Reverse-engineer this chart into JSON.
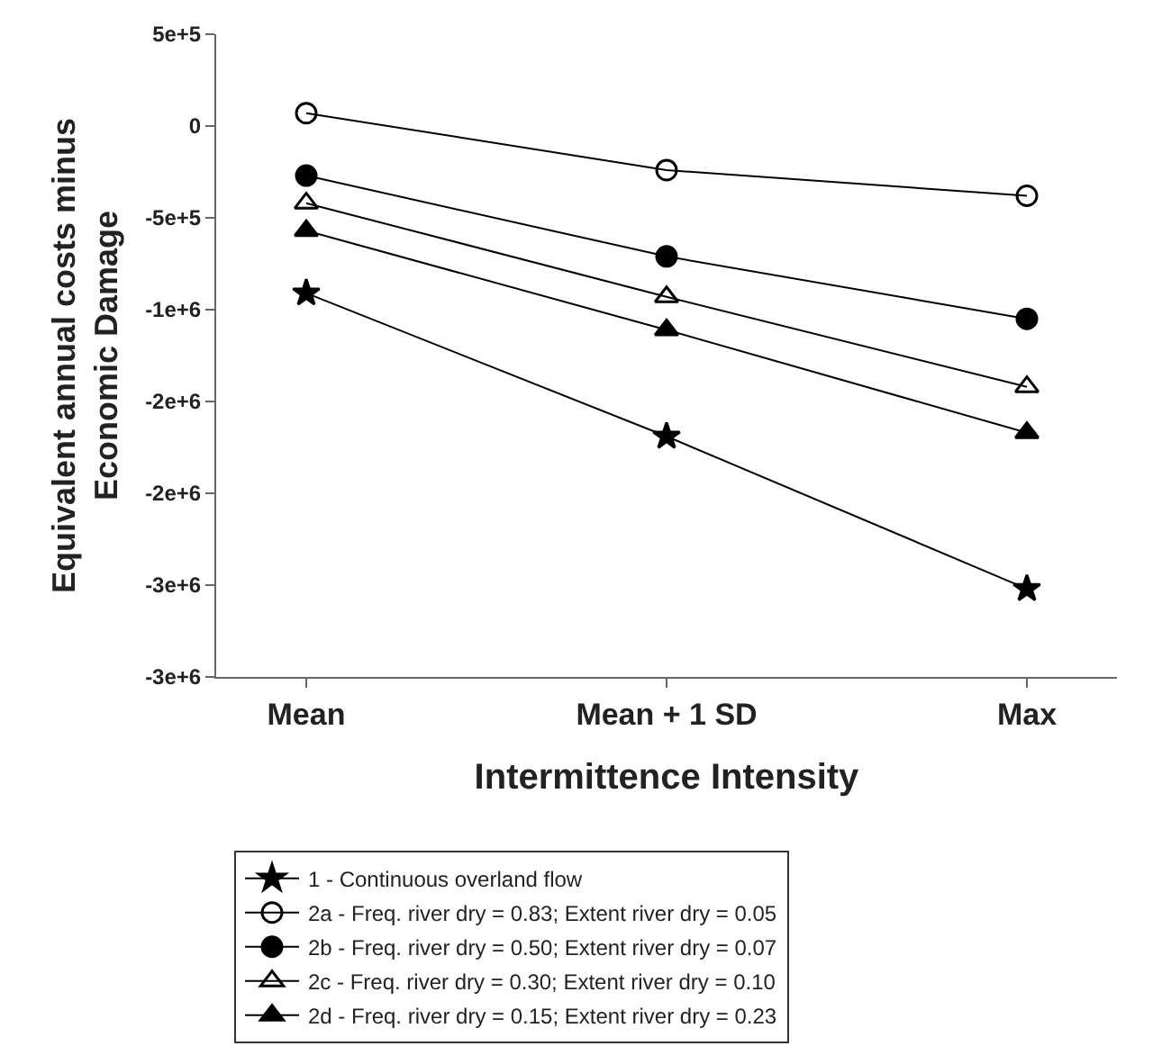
{
  "chart_data": {
    "type": "line",
    "xlabel": "Intermittence Intensity",
    "ylabel": "Equivalent annual costs minus\nEconomic Damage",
    "categories": [
      "Mean",
      "Mean + 1 SD",
      "Max"
    ],
    "ylim": [
      -3000000,
      500000
    ],
    "yticks": [
      {
        "value": 500000,
        "label": "5e+5"
      },
      {
        "value": 0,
        "label": "0"
      },
      {
        "value": -500000,
        "label": "-5e+5"
      },
      {
        "value": -1000000,
        "label": "-1e+6"
      },
      {
        "value": -1500000,
        "label": "-2e+6"
      },
      {
        "value": -2000000,
        "label": "-2e+6"
      },
      {
        "value": -2500000,
        "label": "-3e+6"
      },
      {
        "value": -3000000,
        "label": "-3e+6"
      }
    ],
    "legend": "bottom",
    "line_style": "solid",
    "series": [
      {
        "name": "1 - Continuous overland flow",
        "color": "#000000",
        "marker": "star",
        "values": [
          -910000,
          -1690000,
          -2520000
        ]
      },
      {
        "name": "2a - Freq. river dry = 0.83; Extent river dry = 0.05",
        "color": "#000000",
        "marker": "circle-open",
        "values": [
          70000,
          -240000,
          -380000
        ]
      },
      {
        "name": "2b - Freq. river dry = 0.50; Extent river dry = 0.07",
        "color": "#000000",
        "marker": "circle",
        "values": [
          -270000,
          -710000,
          -1050000
        ]
      },
      {
        "name": "2c - Freq. river dry = 0.30; Extent river dry = 0.10",
        "color": "#000000",
        "marker": "triangle-open",
        "values": [
          -420000,
          -930000,
          -1420000
        ]
      },
      {
        "name": "2d - Freq. river dry = 0.15; Extent river dry = 0.23",
        "color": "#000000",
        "marker": "triangle",
        "values": [
          -570000,
          -1110000,
          -1670000
        ]
      }
    ]
  }
}
